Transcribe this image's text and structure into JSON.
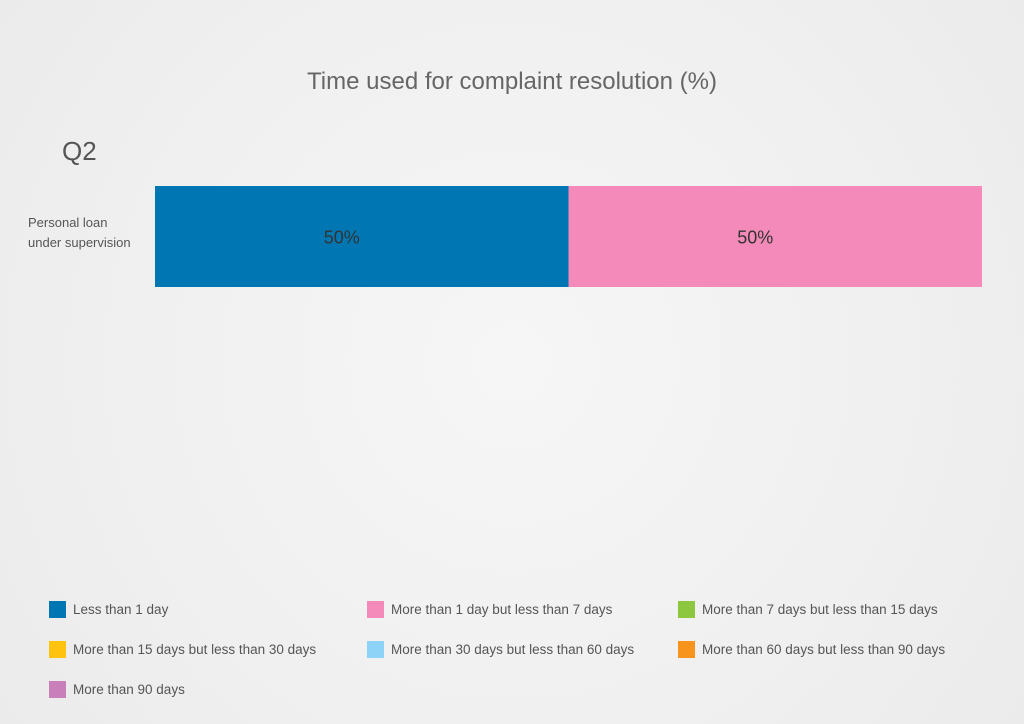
{
  "chart_data": {
    "type": "bar",
    "orientation": "horizontal",
    "stacked": true,
    "title": "Time used for complaint resolution (%)",
    "period_label": "Q2",
    "categories": [
      "Personal loan\nunder supervision"
    ],
    "xlim": [
      0,
      100
    ],
    "series": [
      {
        "name": "Less than 1 day",
        "values": [
          50
        ],
        "label": "50%",
        "color": "#0077b3"
      },
      {
        "name": "More than 1 day but less than 7 days",
        "values": [
          50
        ],
        "label": "50%",
        "color": "#f48ab9"
      },
      {
        "name": "More than 7 days but less than 15 days",
        "values": [
          0
        ],
        "color": "#8dc63f"
      },
      {
        "name": "More than 15 days but less than 30 days",
        "values": [
          0
        ],
        "color": "#ffc20e"
      },
      {
        "name": "More than 30 days but less than 60 days",
        "values": [
          0
        ],
        "color": "#8dd3f7"
      },
      {
        "name": "More than 60 days but less than 90 days",
        "values": [
          0
        ],
        "color": "#f7941d"
      },
      {
        "name": "More than 90 days",
        "values": [
          0
        ],
        "color": "#c87fba"
      }
    ],
    "legend_position": "bottom",
    "grid": false
  }
}
